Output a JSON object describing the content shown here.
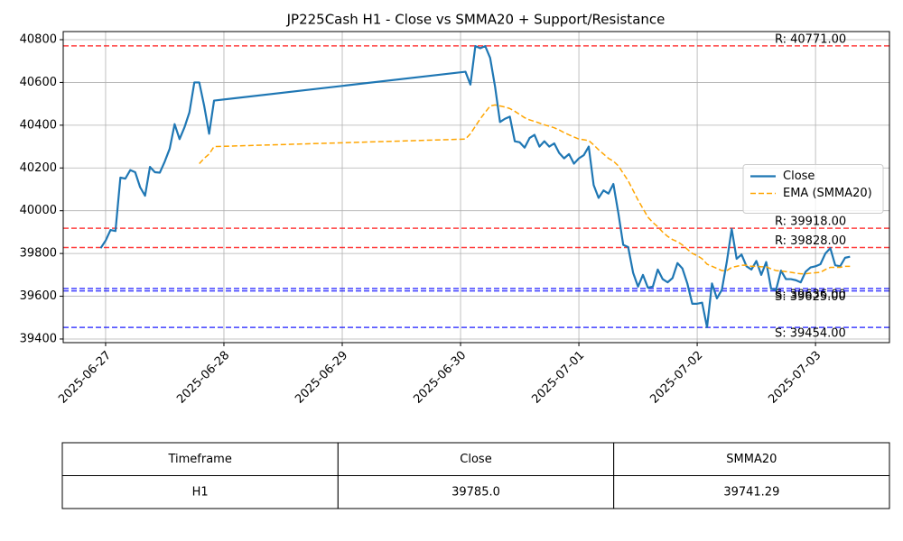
{
  "chart_data": {
    "type": "line",
    "title": "JP225Cash H1 - Close vs SMMA20 + Support/Resistance",
    "x": [
      "2025-06-26 23:00",
      "2025-06-27 00:00",
      "2025-06-27 01:00",
      "2025-06-27 02:00",
      "2025-06-27 03:00",
      "2025-06-27 04:00",
      "2025-06-27 05:00",
      "2025-06-27 06:00",
      "2025-06-27 07:00",
      "2025-06-27 08:00",
      "2025-06-27 09:00",
      "2025-06-27 10:00",
      "2025-06-27 11:00",
      "2025-06-27 12:00",
      "2025-06-27 13:00",
      "2025-06-27 14:00",
      "2025-06-27 15:00",
      "2025-06-27 16:00",
      "2025-06-27 17:00",
      "2025-06-27 18:00",
      "2025-06-27 19:00",
      "2025-06-27 20:00",
      "2025-06-27 21:00",
      "2025-06-27 22:00",
      "2025-06-30 01:00",
      "2025-06-30 02:00",
      "2025-06-30 03:00",
      "2025-06-30 04:00",
      "2025-06-30 05:00",
      "2025-06-30 06:00",
      "2025-06-30 07:00",
      "2025-06-30 08:00",
      "2025-06-30 09:00",
      "2025-06-30 10:00",
      "2025-06-30 11:00",
      "2025-06-30 12:00",
      "2025-06-30 13:00",
      "2025-06-30 14:00",
      "2025-06-30 15:00",
      "2025-06-30 16:00",
      "2025-06-30 17:00",
      "2025-06-30 18:00",
      "2025-06-30 19:00",
      "2025-06-30 20:00",
      "2025-06-30 21:00",
      "2025-06-30 22:00",
      "2025-06-30 23:00",
      "2025-07-01 00:00",
      "2025-07-01 01:00",
      "2025-07-01 02:00",
      "2025-07-01 03:00",
      "2025-07-01 04:00",
      "2025-07-01 05:00",
      "2025-07-01 06:00",
      "2025-07-01 07:00",
      "2025-07-01 08:00",
      "2025-07-01 09:00",
      "2025-07-01 10:00",
      "2025-07-01 11:00",
      "2025-07-01 12:00",
      "2025-07-01 13:00",
      "2025-07-01 14:00",
      "2025-07-01 15:00",
      "2025-07-01 16:00",
      "2025-07-01 17:00",
      "2025-07-01 18:00",
      "2025-07-01 19:00",
      "2025-07-01 20:00",
      "2025-07-01 21:00",
      "2025-07-01 22:00",
      "2025-07-01 23:00",
      "2025-07-02 00:00",
      "2025-07-02 01:00",
      "2025-07-02 02:00",
      "2025-07-02 03:00",
      "2025-07-02 04:00",
      "2025-07-02 05:00",
      "2025-07-02 06:00",
      "2025-07-02 07:00",
      "2025-07-02 08:00",
      "2025-07-02 09:00",
      "2025-07-02 10:00",
      "2025-07-02 11:00",
      "2025-07-02 12:00",
      "2025-07-02 13:00",
      "2025-07-02 14:00",
      "2025-07-02 15:00",
      "2025-07-02 16:00",
      "2025-07-02 17:00",
      "2025-07-02 18:00",
      "2025-07-02 19:00",
      "2025-07-02 20:00",
      "2025-07-02 21:00",
      "2025-07-02 22:00",
      "2025-07-02 23:00",
      "2025-07-03 00:00",
      "2025-07-03 01:00",
      "2025-07-03 02:00",
      "2025-07-03 03:00",
      "2025-07-03 04:00",
      "2025-07-03 05:00",
      "2025-07-03 06:00",
      "2025-07-03 07:00"
    ],
    "series": [
      {
        "name": "Close",
        "color": "#1f77b4",
        "style": "solid",
        "values": [
          39825,
          39860,
          39910,
          39905,
          40155,
          40150,
          40190,
          40180,
          40110,
          40070,
          40205,
          40180,
          40178,
          40230,
          40290,
          40405,
          40335,
          40390,
          40460,
          40600,
          40600,
          40490,
          40360,
          40515,
          40650,
          40590,
          40770,
          40760,
          40770,
          40715,
          40580,
          40415,
          40430,
          40440,
          40325,
          40320,
          40295,
          40340,
          40355,
          40300,
          40325,
          40300,
          40315,
          40270,
          40245,
          40265,
          40220,
          40245,
          40260,
          40300,
          40120,
          40060,
          40095,
          40080,
          40125,
          39990,
          39840,
          39830,
          39710,
          39645,
          39700,
          39640,
          39645,
          39725,
          39680,
          39665,
          39685,
          39755,
          39730,
          39660,
          39565,
          39565,
          39570,
          39455,
          39660,
          39590,
          39630,
          39760,
          39915,
          39775,
          39795,
          39740,
          39725,
          39765,
          39700,
          39760,
          39635,
          39630,
          39720,
          39680,
          39680,
          39675,
          39665,
          39715,
          39735,
          39740,
          39750,
          39800,
          39825,
          39745,
          39740,
          39780,
          39785
        ]
      },
      {
        "name": "EMA (SMMA20)",
        "color": "#ffa500",
        "style": "dashed",
        "values": [
          null,
          null,
          null,
          null,
          null,
          null,
          null,
          null,
          null,
          null,
          null,
          null,
          null,
          null,
          null,
          null,
          null,
          null,
          null,
          null,
          40220,
          40245,
          40265,
          40300,
          40335,
          40360,
          40395,
          40430,
          40460,
          40490,
          40495,
          40490,
          40485,
          40478,
          40465,
          40450,
          40435,
          40425,
          40418,
          40410,
          40402,
          40395,
          40388,
          40378,
          40365,
          40355,
          40345,
          40335,
          40332,
          40328,
          40308,
          40285,
          40265,
          40245,
          40232,
          40210,
          40175,
          40140,
          40095,
          40050,
          40010,
          39970,
          39945,
          39925,
          39900,
          39880,
          39865,
          39855,
          39840,
          39820,
          39800,
          39790,
          39775,
          39750,
          39740,
          39730,
          39720,
          39720,
          39735,
          39740,
          39745,
          39745,
          39740,
          39740,
          39738,
          39738,
          39728,
          39720,
          39718,
          39715,
          39712,
          39708,
          39705,
          39705,
          39708,
          39710,
          39712,
          39725,
          39735,
          39735,
          39735,
          39740,
          39740
        ]
      }
    ],
    "xlim": [
      "2025-06-26 15:24",
      "2025-07-03 15:00"
    ],
    "xticks": [
      "2025-06-27",
      "2025-06-28",
      "2025-06-29",
      "2025-06-30",
      "2025-07-01",
      "2025-07-02",
      "2025-07-03"
    ],
    "ylim": [
      39383,
      40838
    ],
    "yticks": [
      39400,
      39600,
      39800,
      40000,
      40200,
      40400,
      40600,
      40800
    ],
    "grid": true,
    "legend": "center right",
    "levels": {
      "values": [
        40771,
        39918,
        39828,
        39636,
        39625,
        39454
      ],
      "value_labels": [
        "R: 40771.00",
        "R: 39918.00",
        "R: 39828.00",
        "S: 39636.00",
        "S: 39625.00",
        "S: 39454.00"
      ],
      "colors": [
        "#ff0000",
        "#ff0000",
        "#ff0000",
        "#0000ff",
        "#0000ff",
        "#0000ff"
      ]
    }
  },
  "table": {
    "header": [
      "Timeframe",
      "Close",
      "SMMA20"
    ],
    "rows": [
      [
        "H1",
        "39785.0",
        "39741.29"
      ]
    ]
  }
}
